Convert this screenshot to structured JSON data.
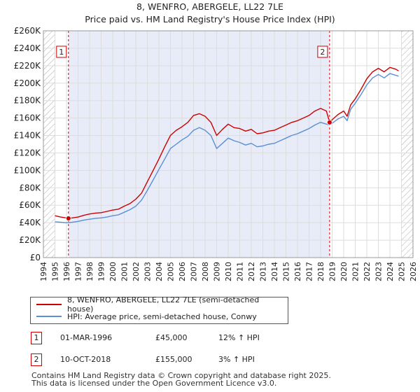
{
  "chart_data": {
    "type": "line",
    "title": "8, WENFRO, ABERGELE, LL22 7LE",
    "subtitle": "Price paid vs. HM Land Registry's House Price Index (HPI)",
    "xlim": [
      1994,
      2026
    ],
    "ylim": [
      0,
      260000
    ],
    "x_ticks": [
      "1994",
      "1995",
      "1996",
      "1997",
      "1998",
      "1999",
      "2000",
      "2001",
      "2002",
      "2003",
      "2004",
      "2005",
      "2006",
      "2007",
      "2008",
      "2009",
      "2010",
      "2011",
      "2012",
      "2013",
      "2014",
      "2015",
      "2016",
      "2017",
      "2018",
      "2019",
      "2020",
      "2021",
      "2022",
      "2023",
      "2024",
      "2025",
      "2026"
    ],
    "y_ticks": [
      {
        "v": 0,
        "label": "£0"
      },
      {
        "v": 20000,
        "label": "£20K"
      },
      {
        "v": 40000,
        "label": "£40K"
      },
      {
        "v": 60000,
        "label": "£60K"
      },
      {
        "v": 80000,
        "label": "£80K"
      },
      {
        "v": 100000,
        "label": "£100K"
      },
      {
        "v": 120000,
        "label": "£120K"
      },
      {
        "v": 140000,
        "label": "£140K"
      },
      {
        "v": 160000,
        "label": "£160K"
      },
      {
        "v": 180000,
        "label": "£180K"
      },
      {
        "v": 200000,
        "label": "£200K"
      },
      {
        "v": 220000,
        "label": "£220K"
      },
      {
        "v": 240000,
        "label": "£240K"
      },
      {
        "v": 260000,
        "label": "£260K"
      }
    ],
    "grid": true,
    "series": [
      {
        "name": "8, WENFRO, ABERGELE, LL22 7LE (semi-detached house)",
        "color": "#cc0000",
        "points": [
          [
            1995.0,
            48000
          ],
          [
            1995.5,
            46500
          ],
          [
            1996.0,
            45500
          ],
          [
            1996.17,
            45000
          ],
          [
            1996.5,
            45500
          ],
          [
            1997.0,
            46500
          ],
          [
            1997.5,
            48500
          ],
          [
            1998.0,
            50000
          ],
          [
            1998.5,
            51000
          ],
          [
            1999.0,
            51500
          ],
          [
            1999.5,
            53000
          ],
          [
            2000.0,
            54500
          ],
          [
            2000.5,
            55500
          ],
          [
            2001.0,
            59000
          ],
          [
            2001.5,
            62000
          ],
          [
            2002.0,
            67000
          ],
          [
            2002.5,
            74000
          ],
          [
            2003.0,
            87000
          ],
          [
            2003.5,
            100000
          ],
          [
            2004.0,
            113000
          ],
          [
            2004.5,
            127000
          ],
          [
            2005.0,
            140000
          ],
          [
            2005.5,
            146000
          ],
          [
            2006.0,
            150000
          ],
          [
            2006.5,
            155000
          ],
          [
            2007.0,
            163000
          ],
          [
            2007.5,
            165000
          ],
          [
            2008.0,
            162000
          ],
          [
            2008.5,
            155000
          ],
          [
            2009.0,
            140000
          ],
          [
            2009.5,
            147000
          ],
          [
            2010.0,
            153000
          ],
          [
            2010.5,
            149000
          ],
          [
            2011.0,
            148000
          ],
          [
            2011.5,
            145000
          ],
          [
            2012.0,
            147000
          ],
          [
            2012.5,
            142000
          ],
          [
            2013.0,
            143000
          ],
          [
            2013.5,
            145000
          ],
          [
            2014.0,
            146000
          ],
          [
            2014.5,
            149000
          ],
          [
            2015.0,
            152000
          ],
          [
            2015.5,
            155000
          ],
          [
            2016.0,
            157000
          ],
          [
            2016.5,
            160000
          ],
          [
            2017.0,
            163000
          ],
          [
            2017.5,
            168000
          ],
          [
            2018.0,
            171000
          ],
          [
            2018.5,
            168000
          ],
          [
            2018.78,
            155000
          ],
          [
            2019.0,
            158000
          ],
          [
            2019.5,
            164000
          ],
          [
            2020.0,
            168000
          ],
          [
            2020.3,
            162000
          ],
          [
            2020.6,
            175000
          ],
          [
            2021.0,
            182000
          ],
          [
            2021.5,
            193000
          ],
          [
            2022.0,
            205000
          ],
          [
            2022.5,
            213000
          ],
          [
            2023.0,
            217000
          ],
          [
            2023.5,
            213000
          ],
          [
            2024.0,
            218000
          ],
          [
            2024.5,
            216000
          ],
          [
            2024.75,
            214000
          ]
        ]
      },
      {
        "name": "HPI: Average price, semi-detached house, Conwy",
        "color": "#5b8fd4",
        "points": [
          [
            1995.0,
            41000
          ],
          [
            1995.5,
            40500
          ],
          [
            1996.0,
            40000
          ],
          [
            1996.5,
            40500
          ],
          [
            1997.0,
            41500
          ],
          [
            1997.5,
            43000
          ],
          [
            1998.0,
            44000
          ],
          [
            1998.5,
            45000
          ],
          [
            1999.0,
            45500
          ],
          [
            1999.5,
            46500
          ],
          [
            2000.0,
            48000
          ],
          [
            2000.5,
            49000
          ],
          [
            2001.0,
            52000
          ],
          [
            2001.5,
            55000
          ],
          [
            2002.0,
            59000
          ],
          [
            2002.5,
            66000
          ],
          [
            2003.0,
            77000
          ],
          [
            2003.5,
            89000
          ],
          [
            2004.0,
            101000
          ],
          [
            2004.5,
            113000
          ],
          [
            2005.0,
            125000
          ],
          [
            2005.5,
            130000
          ],
          [
            2006.0,
            135000
          ],
          [
            2006.5,
            139000
          ],
          [
            2007.0,
            146000
          ],
          [
            2007.5,
            149000
          ],
          [
            2008.0,
            146000
          ],
          [
            2008.5,
            140000
          ],
          [
            2009.0,
            125000
          ],
          [
            2009.5,
            131000
          ],
          [
            2010.0,
            137000
          ],
          [
            2010.5,
            134000
          ],
          [
            2011.0,
            132000
          ],
          [
            2011.5,
            129000
          ],
          [
            2012.0,
            131000
          ],
          [
            2012.5,
            127000
          ],
          [
            2013.0,
            128000
          ],
          [
            2013.5,
            130000
          ],
          [
            2014.0,
            131000
          ],
          [
            2014.5,
            134000
          ],
          [
            2015.0,
            137000
          ],
          [
            2015.5,
            140000
          ],
          [
            2016.0,
            142000
          ],
          [
            2016.5,
            145000
          ],
          [
            2017.0,
            148000
          ],
          [
            2017.5,
            152000
          ],
          [
            2018.0,
            155000
          ],
          [
            2018.5,
            153000
          ],
          [
            2018.78,
            152000
          ],
          [
            2019.0,
            154000
          ],
          [
            2019.5,
            159000
          ],
          [
            2020.0,
            162000
          ],
          [
            2020.3,
            157000
          ],
          [
            2020.6,
            170000
          ],
          [
            2021.0,
            177000
          ],
          [
            2021.5,
            187000
          ],
          [
            2022.0,
            198000
          ],
          [
            2022.5,
            206000
          ],
          [
            2023.0,
            210000
          ],
          [
            2023.5,
            206000
          ],
          [
            2024.0,
            211000
          ],
          [
            2024.5,
            209000
          ],
          [
            2024.75,
            208000
          ]
        ]
      }
    ],
    "sales": [
      {
        "label": "1",
        "x": 1996.17,
        "y": 45000
      },
      {
        "label": "2",
        "x": 2018.78,
        "y": 155000
      }
    ]
  },
  "legend": {
    "line1": "8, WENFRO, ABERGELE, LL22 7LE (semi-detached house)",
    "line2": "HPI: Average price, semi-detached house, Conwy"
  },
  "annotations": [
    {
      "num": "1",
      "date": "01-MAR-1996",
      "price": "£45,000",
      "hpi": "12% ↑ HPI"
    },
    {
      "num": "2",
      "date": "10-OCT-2018",
      "price": "£155,000",
      "hpi": "3% ↑ HPI"
    }
  ],
  "footer": {
    "line1": "Contains HM Land Registry data © Crown copyright and database right 2025.",
    "line2": "This data is licensed under the Open Government Licence v3.0."
  },
  "colors": {
    "price_line": "#cc0000",
    "hpi_line": "#5b8fd4",
    "shade": "#e8ecf8",
    "hatch": "#999999"
  }
}
